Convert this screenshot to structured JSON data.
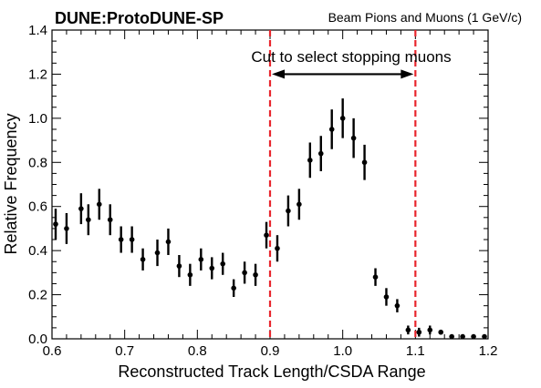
{
  "chart_data": {
    "type": "scatter",
    "title": "DUNE:ProtoDUNE-SP",
    "subtitle": "Beam Pions and Muons (1 GeV/c)",
    "xlabel": "Reconstructed Track Length/CSDA Range",
    "ylabel": "Relative Frequency",
    "xlim": [
      0.6,
      1.2
    ],
    "ylim": [
      0,
      1.4
    ],
    "xticks": [
      "0.6",
      "0.7",
      "0.8",
      "0.9",
      "1.0",
      "1.1",
      "1.2"
    ],
    "yticks": [
      "0.0",
      "0.2",
      "0.4",
      "0.6",
      "0.8",
      "1.0",
      "1.2",
      "1.4"
    ],
    "grid": false,
    "legend": "none",
    "annotation": {
      "text": "Cut to select stopping muons",
      "cut_low": 0.9,
      "cut_high": 1.1,
      "arrow_y": 1.2
    },
    "series": [
      {
        "marker_color": "#000000",
        "points": [
          {
            "x": 0.605,
            "y": 0.52,
            "err": 0.07
          },
          {
            "x": 0.62,
            "y": 0.5,
            "err": 0.07
          },
          {
            "x": 0.64,
            "y": 0.59,
            "err": 0.07
          },
          {
            "x": 0.65,
            "y": 0.54,
            "err": 0.07
          },
          {
            "x": 0.665,
            "y": 0.61,
            "err": 0.07
          },
          {
            "x": 0.68,
            "y": 0.54,
            "err": 0.07
          },
          {
            "x": 0.695,
            "y": 0.45,
            "err": 0.06
          },
          {
            "x": 0.71,
            "y": 0.45,
            "err": 0.06
          },
          {
            "x": 0.725,
            "y": 0.36,
            "err": 0.05
          },
          {
            "x": 0.745,
            "y": 0.39,
            "err": 0.06
          },
          {
            "x": 0.76,
            "y": 0.44,
            "err": 0.06
          },
          {
            "x": 0.775,
            "y": 0.33,
            "err": 0.05
          },
          {
            "x": 0.79,
            "y": 0.29,
            "err": 0.05
          },
          {
            "x": 0.805,
            "y": 0.36,
            "err": 0.05
          },
          {
            "x": 0.82,
            "y": 0.32,
            "err": 0.05
          },
          {
            "x": 0.835,
            "y": 0.34,
            "err": 0.05
          },
          {
            "x": 0.85,
            "y": 0.23,
            "err": 0.04
          },
          {
            "x": 0.865,
            "y": 0.3,
            "err": 0.05
          },
          {
            "x": 0.88,
            "y": 0.29,
            "err": 0.05
          },
          {
            "x": 0.895,
            "y": 0.47,
            "err": 0.06
          },
          {
            "x": 0.91,
            "y": 0.41,
            "err": 0.06
          },
          {
            "x": 0.925,
            "y": 0.58,
            "err": 0.07
          },
          {
            "x": 0.94,
            "y": 0.61,
            "err": 0.07
          },
          {
            "x": 0.955,
            "y": 0.81,
            "err": 0.08
          },
          {
            "x": 0.97,
            "y": 0.84,
            "err": 0.08
          },
          {
            "x": 0.985,
            "y": 0.95,
            "err": 0.09
          },
          {
            "x": 1.0,
            "y": 1.0,
            "err": 0.09
          },
          {
            "x": 1.015,
            "y": 0.91,
            "err": 0.09
          },
          {
            "x": 1.03,
            "y": 0.8,
            "err": 0.08
          },
          {
            "x": 1.045,
            "y": 0.28,
            "err": 0.04
          },
          {
            "x": 1.06,
            "y": 0.19,
            "err": 0.04
          },
          {
            "x": 1.075,
            "y": 0.15,
            "err": 0.03
          },
          {
            "x": 1.09,
            "y": 0.04,
            "err": 0.02
          },
          {
            "x": 1.105,
            "y": 0.03,
            "err": 0.02
          },
          {
            "x": 1.12,
            "y": 0.04,
            "err": 0.02
          },
          {
            "x": 1.135,
            "y": 0.03,
            "err": 0.01
          },
          {
            "x": 1.15,
            "y": 0.01,
            "err": 0.0
          },
          {
            "x": 1.165,
            "y": 0.01,
            "err": 0.0
          },
          {
            "x": 1.18,
            "y": 0.01,
            "err": 0.0
          },
          {
            "x": 1.195,
            "y": 0.01,
            "err": 0.0
          }
        ]
      }
    ],
    "colors": {
      "cut_line": "#e8262d",
      "marker": "#000000",
      "axis": "#000000"
    }
  }
}
